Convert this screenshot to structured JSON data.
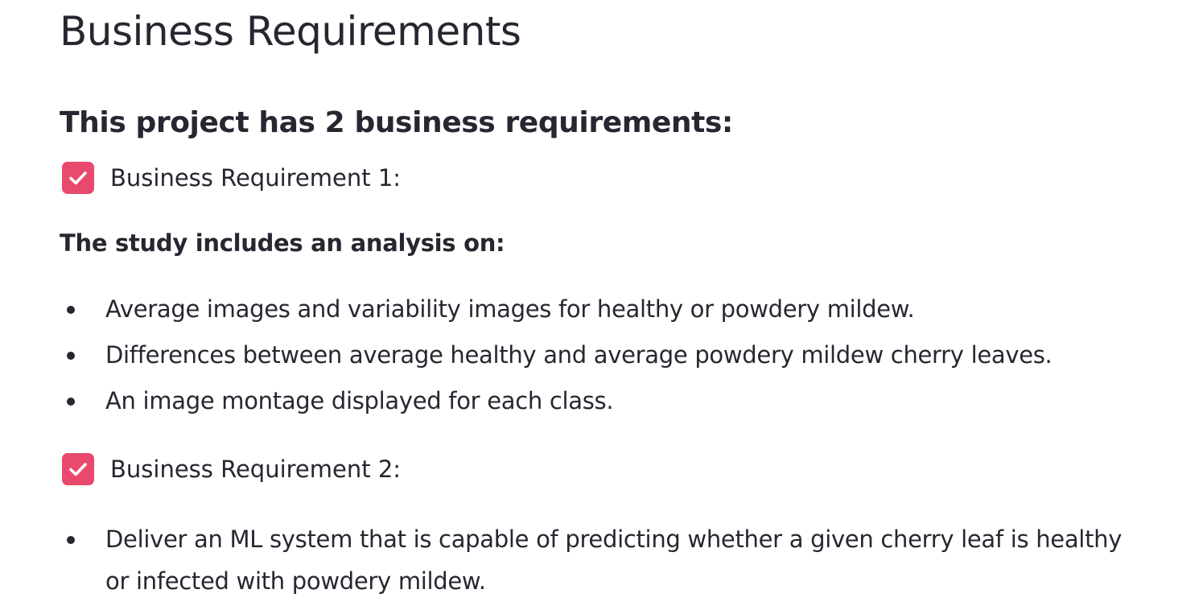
{
  "page": {
    "title": "Business Requirements",
    "section_heading": "This project has 2 business requirements:"
  },
  "requirements": [
    {
      "label": "Business Requirement 1:",
      "checked": true,
      "study_heading": "The study includes an analysis on:",
      "bullets": [
        "Average images and variability images for healthy or powdery mildew.",
        "Differences between average healthy and average powdery mildew cherry leaves.",
        "An image montage displayed for each class."
      ]
    },
    {
      "label": "Business Requirement 2:",
      "checked": true,
      "bullets": [
        "Deliver an ML system that is capable of predicting whether a given cherry leaf is healthy or infected with powdery mildew."
      ]
    }
  ],
  "colors": {
    "checkbox_accent": "#e8496c",
    "text": "#262730",
    "background": "#ffffff"
  },
  "icons": {
    "checkbox_mark": "check-icon",
    "bullet": "bullet-dot-icon"
  }
}
